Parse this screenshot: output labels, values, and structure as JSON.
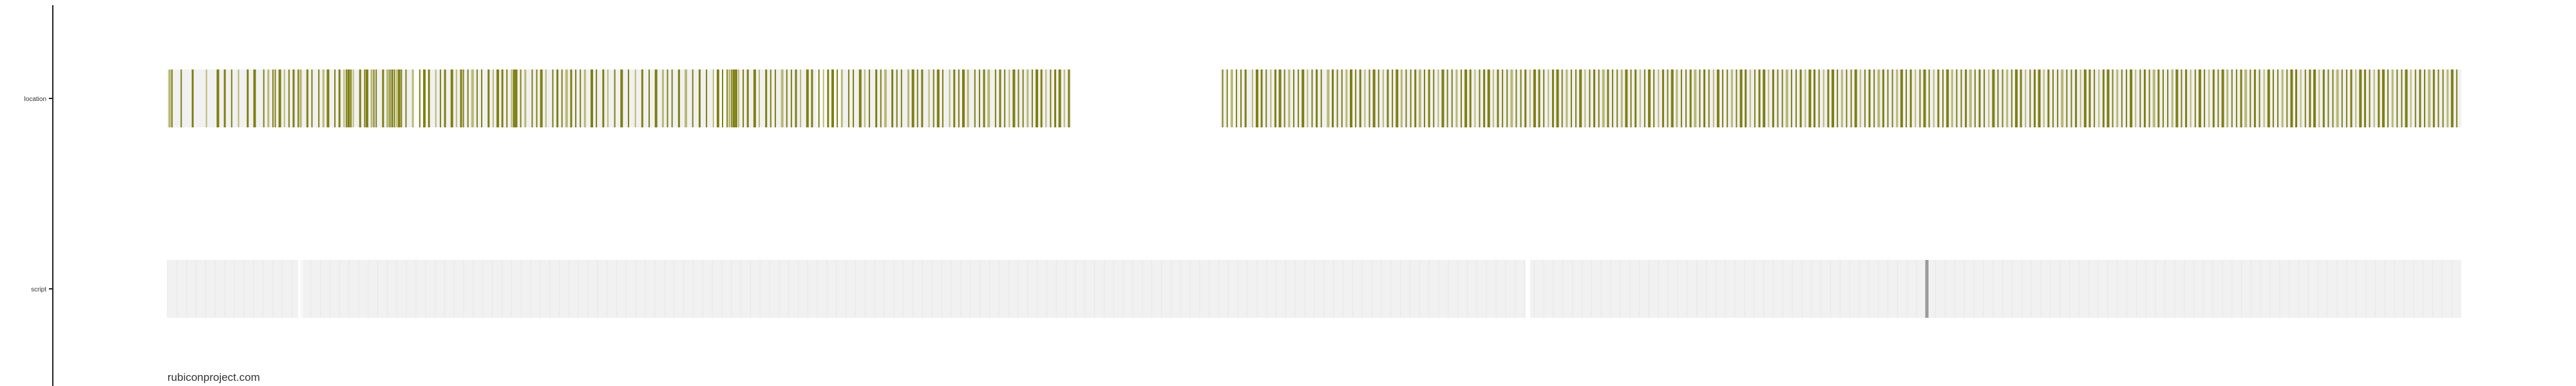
{
  "footer": {
    "domain": "rubiconproject.com"
  },
  "colors": {
    "axis": "#222222",
    "track": "#f1f1f1",
    "gap": "#ffffff",
    "event": "#7f7f12",
    "event_light": "#b9b973",
    "script_marker": "#9a9a9a"
  },
  "chart_data": {
    "type": "timeline",
    "y_categories": [
      "location",
      "script"
    ],
    "x_range": [
      0,
      1000
    ],
    "grid": false,
    "legend": "none",
    "rows": [
      {
        "name": "location",
        "track_segments": [
          [
            0,
            107
          ],
          [
            114,
            238
          ],
          [
            245,
            247
          ],
          [
            249,
            283
          ],
          [
            294,
            394
          ],
          [
            459,
            462
          ],
          [
            466,
            1000
          ]
        ],
        "events": [
          1,
          2,
          6,
          11,
          17,
          22,
          25,
          28,
          31,
          35,
          38,
          42,
          44,
          46,
          47,
          49,
          51,
          53,
          55,
          57,
          58,
          61,
          63,
          66,
          68,
          70,
          73,
          75,
          77,
          78,
          79,
          80,
          81,
          84,
          86,
          87,
          89,
          90,
          91,
          94,
          96,
          97,
          98,
          99,
          100,
          101,
          102,
          104,
          107,
          110,
          112,
          114,
          117,
          119,
          121,
          124,
          126,
          128,
          129,
          131,
          133,
          135,
          137,
          140,
          142,
          144,
          146,
          148,
          150,
          151,
          152,
          154,
          156,
          159,
          161,
          163,
          165,
          168,
          170,
          172,
          174,
          176,
          178,
          180,
          182,
          185,
          187,
          190,
          192,
          195,
          198,
          201,
          204,
          207,
          210,
          213,
          216,
          218,
          220,
          223,
          226,
          229,
          232,
          235,
          238,
          240,
          242,
          244,
          245,
          246,
          247,
          248,
          249,
          251,
          253,
          256,
          258,
          261,
          263,
          265,
          268,
          270,
          272,
          274,
          276,
          279,
          281,
          284,
          286,
          288,
          290,
          292,
          294,
          297,
          299,
          302,
          304,
          306,
          309,
          311,
          313,
          316,
          318,
          320,
          323,
          325,
          327,
          329,
          332,
          334,
          336,
          338,
          341,
          343,
          345,
          347,
          349,
          352,
          354,
          356,
          358,
          361,
          363,
          365,
          367,
          369,
          371,
          373,
          375,
          377,
          379,
          381,
          383,
          385,
          387,
          389,
          391,
          393,
          460,
          462,
          464,
          466,
          468,
          470,
          473,
          475,
          477,
          479,
          481,
          483,
          485,
          487,
          489,
          491,
          493,
          495,
          497,
          499,
          501,
          503,
          506,
          508,
          510,
          512,
          514,
          516,
          518,
          520,
          522,
          524,
          526,
          528,
          530,
          532,
          534,
          536,
          538,
          540,
          542,
          544,
          546,
          548,
          550,
          552,
          554,
          556,
          558,
          560,
          562,
          564,
          566,
          568,
          570,
          572,
          574,
          576,
          578,
          580,
          582,
          584,
          586,
          588,
          590,
          592,
          594,
          596,
          598,
          600,
          602,
          604,
          606,
          608,
          610,
          612,
          614,
          616,
          618,
          620,
          622,
          624,
          626,
          628,
          630,
          632,
          634,
          636,
          638,
          640,
          642,
          644,
          646,
          648,
          650,
          652,
          654,
          656,
          658,
          660,
          662,
          664,
          666,
          668,
          670,
          672,
          674,
          676,
          678,
          680,
          682,
          684,
          686,
          688,
          690,
          692,
          694,
          696,
          698,
          700,
          702,
          704,
          706,
          708,
          710,
          712,
          714,
          716,
          718,
          720,
          722,
          724,
          726,
          728,
          730,
          732,
          734,
          736,
          738,
          740,
          742,
          744,
          746,
          748,
          750,
          752,
          754,
          756,
          758,
          760,
          762,
          764,
          766,
          768,
          770,
          772,
          774,
          776,
          778,
          780,
          782,
          784,
          786,
          788,
          790,
          792,
          794,
          796,
          798,
          800,
          802,
          804,
          806,
          808,
          810,
          812,
          814,
          816,
          818,
          820,
          822,
          824,
          826,
          828,
          830,
          832,
          834,
          836,
          838,
          840,
          842,
          844,
          846,
          848,
          850,
          852,
          854,
          856,
          858,
          860,
          862,
          864,
          866,
          868,
          870,
          872,
          874,
          876,
          878,
          880,
          882,
          884,
          886,
          888,
          890,
          892,
          894,
          896,
          898,
          900,
          902,
          904,
          906,
          908,
          910,
          912,
          914,
          916,
          918,
          920,
          922,
          924,
          926,
          928,
          930,
          932,
          934,
          936,
          938,
          940,
          942,
          944,
          946,
          948,
          950,
          952,
          954,
          956,
          958,
          960,
          962,
          964,
          966,
          968,
          970,
          972,
          974,
          976,
          978,
          980,
          982,
          984,
          986,
          988,
          990,
          992,
          994,
          996,
          998
        ]
      },
      {
        "name": "script",
        "track_segments": [
          [
            0,
            57
          ],
          [
            59,
            592
          ],
          [
            594,
            1000
          ]
        ],
        "events": [
          767
        ]
      }
    ]
  }
}
